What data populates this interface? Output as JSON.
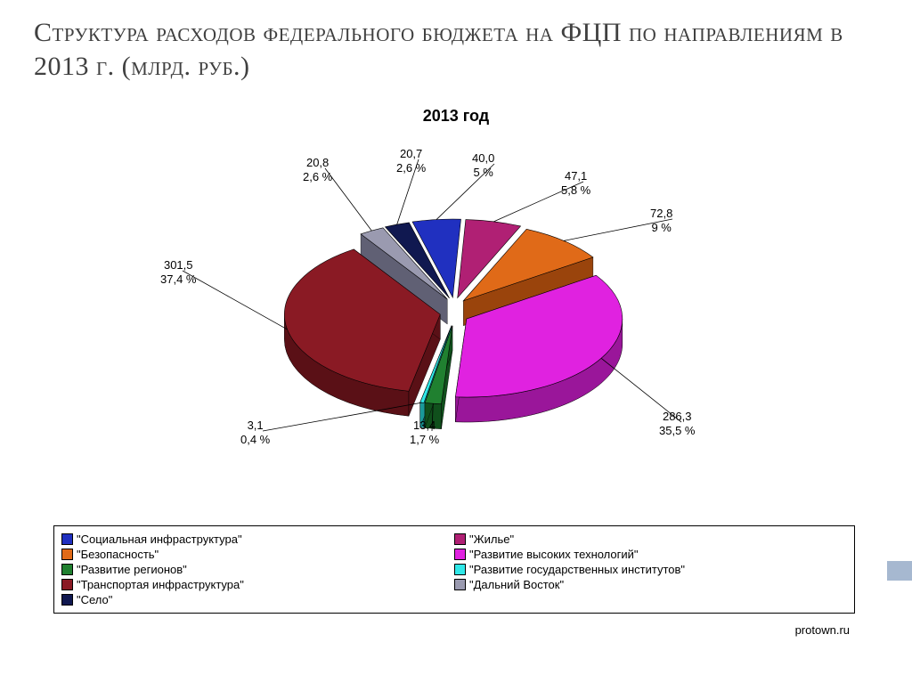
{
  "title": "Структура расходов федерального бюджета на ФЦП по направлениям в 2013 г. (млрд. руб.)",
  "chart": {
    "type": "pie-3d",
    "title": "2013 год",
    "title_fontsize": 18,
    "background_color": "#ffffff",
    "border_color": "#000000",
    "slices": [
      {
        "name": "Социальная инфраструктура",
        "value_label": "40,0",
        "percent_label": "5 %",
        "value": 40.0,
        "percent": 5.0,
        "color_top": "#2030c0",
        "color_side": "#101a70"
      },
      {
        "name": "Жилье",
        "value_label": "47,1",
        "percent_label": "5,8 %",
        "value": 47.1,
        "percent": 5.8,
        "color_top": "#b02074",
        "color_side": "#701048"
      },
      {
        "name": "Безопасность",
        "value_label": "72,8",
        "percent_label": "9 %",
        "value": 72.8,
        "percent": 9.0,
        "color_top": "#e06a18",
        "color_side": "#9a440c"
      },
      {
        "name": "Развитие высоких технологий",
        "value_label": "286,3",
        "percent_label": "35,5 %",
        "value": 286.3,
        "percent": 35.5,
        "color_top": "#e022e0",
        "color_side": "#9a169a"
      },
      {
        "name": "Развитие регионов",
        "value_label": "13,4",
        "percent_label": "1,7 %",
        "value": 13.4,
        "percent": 1.7,
        "color_top": "#208030",
        "color_side": "#10501c"
      },
      {
        "name": "Развитие государственных институтов",
        "value_label": "3,1",
        "percent_label": "0,4 %",
        "value": 3.1,
        "percent": 0.4,
        "color_top": "#30e8e8",
        "color_side": "#1a9a9a"
      },
      {
        "name": "Транспортая инфраструктура",
        "value_label": "301,5",
        "percent_label": "37,4 %",
        "value": 301.5,
        "percent": 37.4,
        "color_top": "#8a1a24",
        "color_side": "#5a1016"
      },
      {
        "name": "Дальний Восток",
        "value_label": "20,8",
        "percent_label": "2,6 %",
        "value": 20.8,
        "percent": 2.6,
        "color_top": "#9a9ab0",
        "color_side": "#606074"
      },
      {
        "name": "Село",
        "value_label": "20,7",
        "percent_label": "2,6 %",
        "value": 20.7,
        "percent": 2.6,
        "color_top": "#101850",
        "color_side": "#080c30"
      }
    ],
    "legend_order_left": [
      0,
      2,
      4,
      6,
      8
    ],
    "legend_order_right": [
      1,
      3,
      5,
      7
    ],
    "value_label_fontsize": 13,
    "legend_fontsize": 13
  },
  "source": "protown.ru"
}
